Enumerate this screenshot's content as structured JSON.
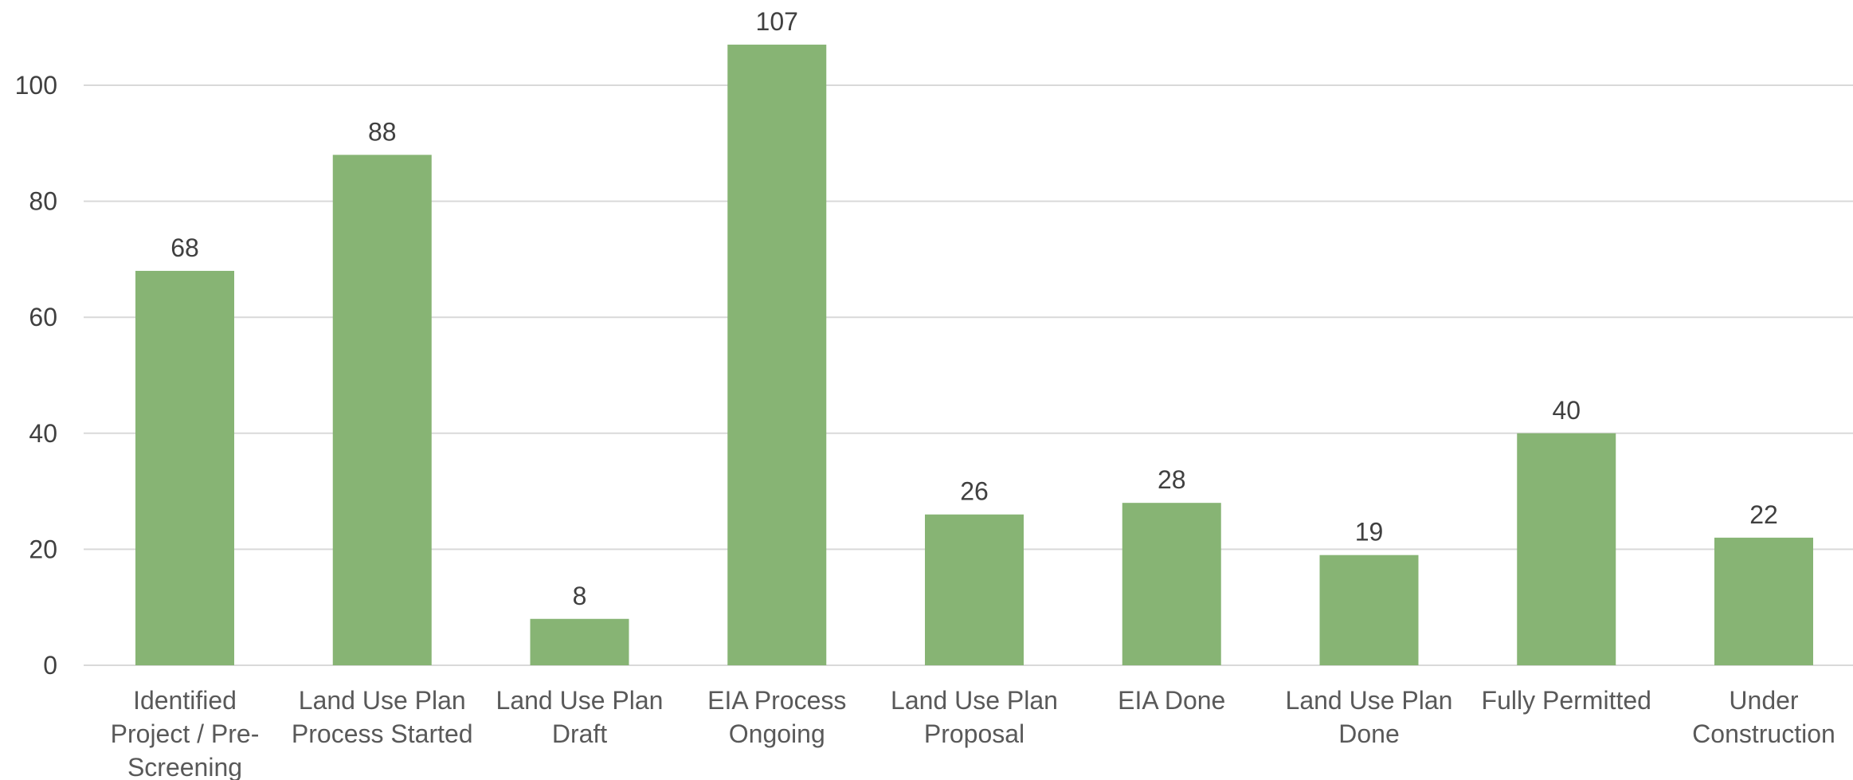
{
  "chart_data": {
    "type": "bar",
    "title": "",
    "xlabel": "",
    "ylabel": "",
    "ylim": [
      0,
      110
    ],
    "yticks": [
      0,
      20,
      40,
      60,
      80,
      100
    ],
    "grid": true,
    "legend": "none",
    "bar_color": "#87b474",
    "categories": [
      "Identified Project / Pre-Screening",
      "Land Use Plan Process Started",
      "Land Use Plan Draft",
      "EIA Process Ongoing",
      "Land Use Plan Proposal",
      "EIA Done",
      "Land Use Plan Done",
      "Fully Permitted",
      "Under Construction"
    ],
    "category_lines": [
      [
        "Identified",
        "Project / Pre-",
        "Screening"
      ],
      [
        "Land Use Plan",
        "Process Started"
      ],
      [
        "Land Use Plan",
        "Draft"
      ],
      [
        "EIA Process",
        "Ongoing"
      ],
      [
        "Land Use Plan",
        "Proposal"
      ],
      [
        "EIA Done"
      ],
      [
        "Land Use Plan",
        "Done"
      ],
      [
        "Fully Permitted"
      ],
      [
        "Under",
        "Construction"
      ]
    ],
    "values": [
      68,
      88,
      8,
      107,
      26,
      28,
      19,
      40,
      22
    ]
  }
}
